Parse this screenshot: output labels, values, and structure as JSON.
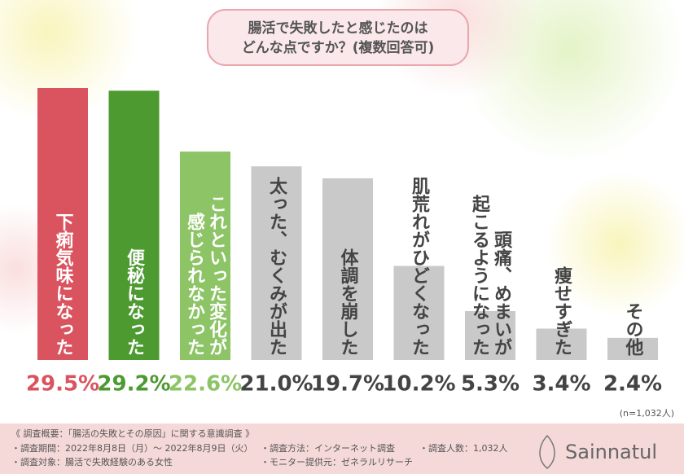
{
  "chart_data": {
    "type": "bar",
    "title_lines": [
      "腸活で失敗したと感じたのは",
      "どんな点ですか？(複数回答可)"
    ],
    "categories": [
      [
        "下痢気味になった"
      ],
      [
        "便秘になった"
      ],
      [
        "これといった変化が",
        "感じられなかった"
      ],
      [
        "太った、むくみが出た"
      ],
      [
        "体調を崩した"
      ],
      [
        "肌荒れがひどくなった"
      ],
      [
        "頭痛、めまいが",
        "起こるようになった"
      ],
      [
        "痩せすぎた"
      ],
      [
        "その他"
      ]
    ],
    "values": [
      29.5,
      29.2,
      22.6,
      21.0,
      19.7,
      10.2,
      5.3,
      3.4,
      2.4
    ],
    "value_labels": [
      "29.5%",
      "29.2%",
      "22.6%",
      "21.0%",
      "19.7%",
      "10.2%",
      "5.3%",
      "3.4%",
      "2.4%"
    ],
    "colors": [
      "#d9545f",
      "#4d9a31",
      "#8cc466",
      "#c9c9c9",
      "#c9c9c9",
      "#c9c9c9",
      "#c9c9c9",
      "#c9c9c9",
      "#c9c9c9"
    ],
    "label_colors": [
      "#d9545f",
      "#4d9a31",
      "#8cc466",
      "#444444",
      "#444444",
      "#444444",
      "#444444",
      "#444444",
      "#444444"
    ],
    "note": "(n=1,032人)"
  },
  "footer": {
    "heading": "《 調査概要：「腸活の失敗とその原因」に関する意識調査 》",
    "items": [
      "・調査期間：2022年8月8日（月）～ 2022年8月9日（火）",
      "・調査方法：インターネット調査",
      "・調査人数：1,032人",
      "・調査対象：腸活で失敗経験のある女性",
      "・モニター提供元：ゼネラルリサーチ"
    ],
    "logo": "Sainnatul"
  }
}
